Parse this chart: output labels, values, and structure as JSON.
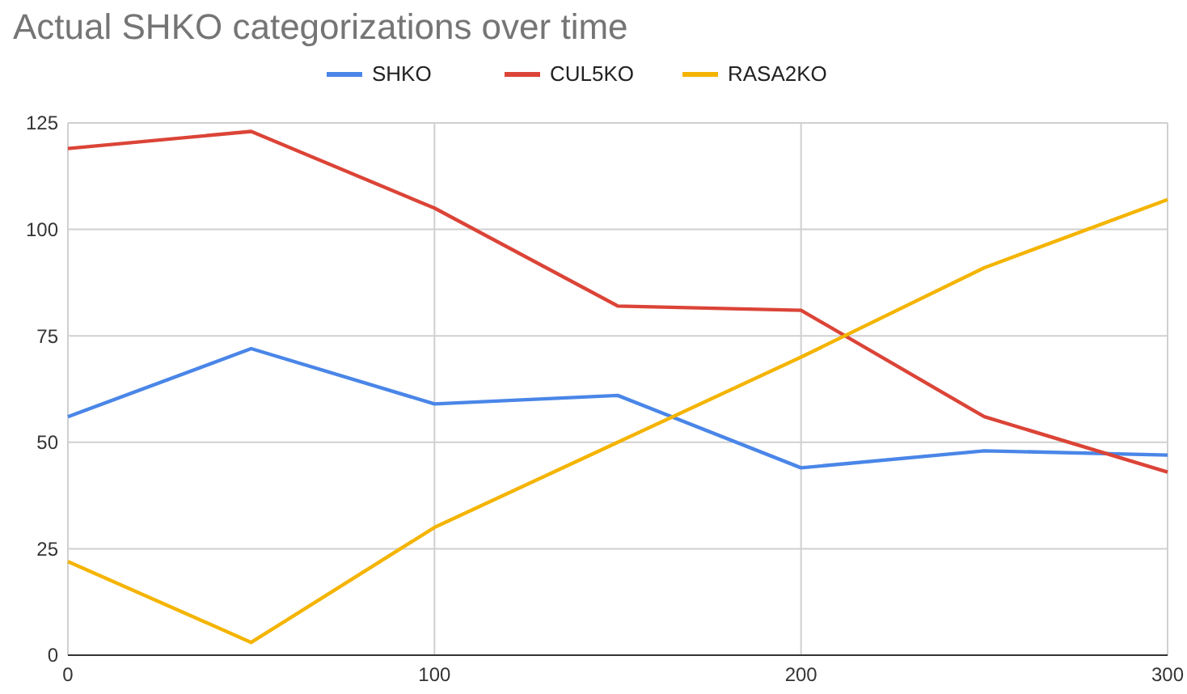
{
  "chart_data": {
    "type": "line",
    "title": "Actual SHKO categorizations over time",
    "x": [
      0,
      50,
      100,
      150,
      200,
      250,
      300
    ],
    "series": [
      {
        "name": "SHKO",
        "color": "#4a86e8",
        "values": [
          56,
          72,
          59,
          61,
          44,
          48,
          47
        ]
      },
      {
        "name": "CUL5KO",
        "color": "#db4437",
        "values": [
          119,
          123,
          105,
          82,
          81,
          56,
          43
        ]
      },
      {
        "name": "RASA2KO",
        "color": "#f4b400",
        "values": [
          22,
          3,
          30,
          50,
          70,
          91,
          107
        ]
      }
    ],
    "xlim": [
      0,
      300
    ],
    "xticks": [
      0,
      100,
      200,
      300
    ],
    "ylim": [
      0,
      125
    ],
    "yticks": [
      0,
      25,
      50,
      75,
      100,
      125
    ],
    "grid": true,
    "legend": "top",
    "marker": "none",
    "line_style": "solid"
  }
}
